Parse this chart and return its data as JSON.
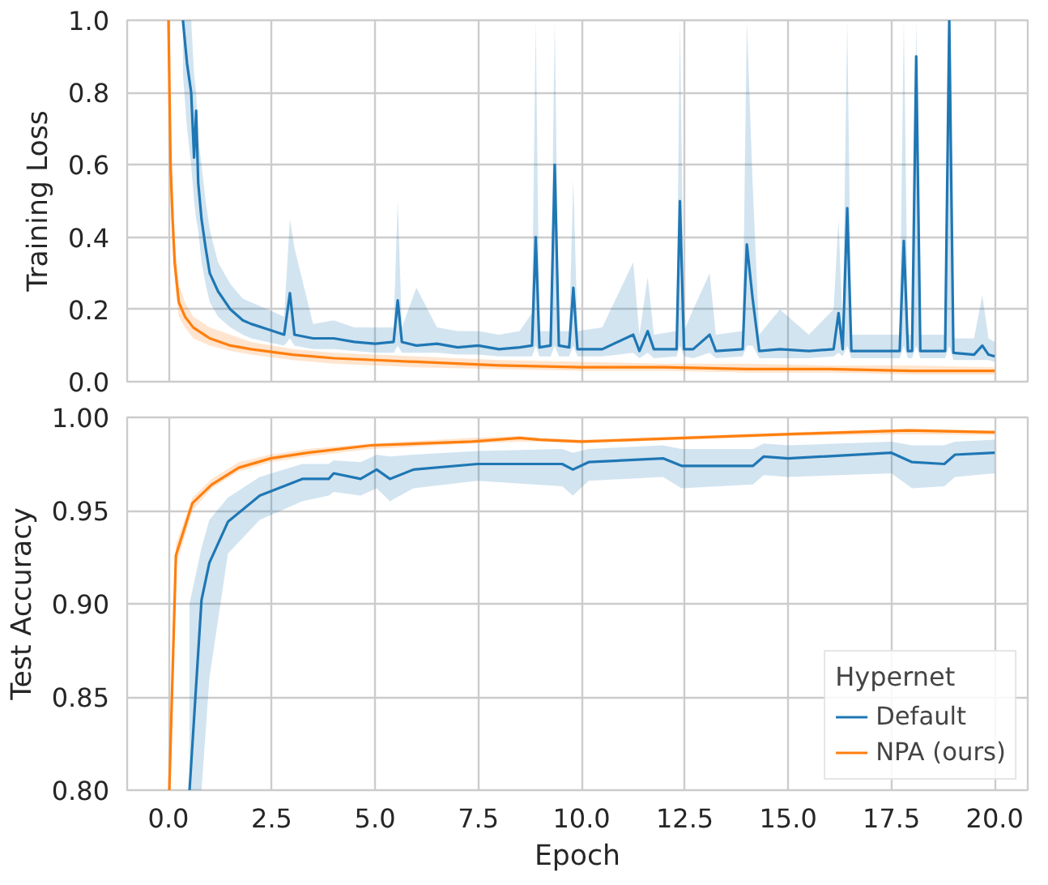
{
  "chart_data": [
    {
      "type": "line",
      "ylabel": "Training Loss",
      "xlim": [
        -1.0,
        20.8
      ],
      "ylim": [
        0,
        1.0
      ],
      "xticks": [
        0,
        2.5,
        5,
        7.5,
        10,
        12.5,
        15,
        17.5,
        20
      ],
      "yticks": [
        {
          "value": 0,
          "label": "0.0"
        },
        0.2,
        0.4,
        0.6,
        0.8,
        {
          "value": 1,
          "label": "1.0"
        }
      ],
      "grid": true,
      "tick_labels": "y",
      "series": [
        {
          "color": "#1f77b4",
          "x": [
            0.35,
            0.45,
            0.55,
            0.62,
            0.67,
            0.72,
            0.8,
            0.9,
            1.0,
            1.2,
            1.5,
            1.8,
            2.0,
            2.4,
            2.8,
            2.94,
            3.05,
            3.5,
            4.0,
            4.5,
            5.0,
            5.45,
            5.55,
            5.65,
            6.0,
            6.5,
            7.0,
            7.5,
            8.0,
            8.5,
            8.8,
            8.89,
            8.98,
            9.25,
            9.35,
            9.45,
            9.7,
            9.8,
            9.9,
            10.5,
            11.25,
            11.4,
            11.6,
            11.75,
            12.3,
            12.38,
            12.48,
            12.7,
            13.1,
            13.25,
            13.9,
            14.0,
            14.14,
            14.3,
            14.8,
            15.5,
            16.1,
            16.22,
            16.32,
            16.43,
            16.53,
            17.2,
            17.7,
            17.8,
            17.9,
            18.0,
            18.1,
            18.2,
            18.8,
            18.9,
            19.0,
            19.5,
            19.7,
            19.85,
            20.0
          ],
          "values": [
            1.0,
            0.88,
            0.8,
            0.62,
            0.75,
            0.55,
            0.45,
            0.37,
            0.3,
            0.25,
            0.2,
            0.17,
            0.16,
            0.145,
            0.13,
            0.245,
            0.13,
            0.12,
            0.12,
            0.11,
            0.105,
            0.11,
            0.225,
            0.11,
            0.1,
            0.105,
            0.095,
            0.1,
            0.09,
            0.095,
            0.1,
            0.4,
            0.095,
            0.1,
            0.6,
            0.1,
            0.095,
            0.26,
            0.09,
            0.09,
            0.13,
            0.085,
            0.14,
            0.09,
            0.09,
            0.5,
            0.09,
            0.09,
            0.13,
            0.085,
            0.09,
            0.38,
            0.23,
            0.085,
            0.09,
            0.085,
            0.09,
            0.19,
            0.09,
            0.48,
            0.085,
            0.085,
            0.085,
            0.39,
            0.085,
            0.085,
            0.9,
            0.085,
            0.085,
            1.0,
            0.08,
            0.075,
            0.1,
            0.075,
            0.07
          ],
          "lower": [
            0.85,
            0.7,
            0.6,
            0.5,
            0.45,
            0.42,
            0.33,
            0.27,
            0.22,
            0.18,
            0.15,
            0.13,
            0.12,
            0.11,
            0.1,
            0.12,
            0.1,
            0.09,
            0.09,
            0.085,
            0.08,
            0.08,
            0.1,
            0.08,
            0.08,
            0.08,
            0.075,
            0.075,
            0.07,
            0.07,
            0.07,
            0.1,
            0.07,
            0.07,
            0.1,
            0.07,
            0.07,
            0.1,
            0.07,
            0.07,
            0.08,
            0.065,
            0.08,
            0.065,
            0.07,
            0.1,
            0.07,
            0.065,
            0.08,
            0.065,
            0.07,
            0.1,
            0.1,
            0.065,
            0.065,
            0.065,
            0.07,
            0.08,
            0.07,
            0.1,
            0.065,
            0.065,
            0.065,
            0.1,
            0.065,
            0.065,
            0.1,
            0.065,
            0.065,
            0.1,
            0.06,
            0.06,
            0.06,
            0.06,
            0.055
          ],
          "upper": [
            1.0,
            1.0,
            1.0,
            0.85,
            0.8,
            0.68,
            0.6,
            0.5,
            0.42,
            0.33,
            0.27,
            0.23,
            0.22,
            0.2,
            0.18,
            0.45,
            0.37,
            0.16,
            0.17,
            0.15,
            0.15,
            0.15,
            0.5,
            0.15,
            0.26,
            0.15,
            0.14,
            0.14,
            0.13,
            0.14,
            0.19,
            1.0,
            0.14,
            0.14,
            1.0,
            0.14,
            0.14,
            0.56,
            0.14,
            0.15,
            0.33,
            0.13,
            0.29,
            0.13,
            0.14,
            1.0,
            0.14,
            0.2,
            0.3,
            0.13,
            0.14,
            1.0,
            0.55,
            0.13,
            0.2,
            0.13,
            0.2,
            0.45,
            0.14,
            1.0,
            0.13,
            0.13,
            0.13,
            1.0,
            0.13,
            0.13,
            1.0,
            0.13,
            0.13,
            1.0,
            0.12,
            0.12,
            0.24,
            0.12,
            0.11
          ]
        },
        {
          "color": "#ff7f0e",
          "x": [
            0.0,
            0.05,
            0.1,
            0.15,
            0.25,
            0.4,
            0.6,
            1.0,
            1.5,
            2.0,
            3.0,
            4.0,
            5.0,
            6.0,
            8.0,
            10.0,
            12.0,
            14.0,
            16.0,
            18.0,
            20.0
          ],
          "values": [
            1.0,
            0.6,
            0.45,
            0.33,
            0.22,
            0.18,
            0.15,
            0.12,
            0.1,
            0.09,
            0.075,
            0.065,
            0.06,
            0.055,
            0.045,
            0.04,
            0.04,
            0.035,
            0.035,
            0.03,
            0.03
          ],
          "lower": [
            0.9,
            0.5,
            0.38,
            0.28,
            0.18,
            0.15,
            0.12,
            0.1,
            0.085,
            0.075,
            0.06,
            0.05,
            0.045,
            0.04,
            0.035,
            0.03,
            0.03,
            0.025,
            0.025,
            0.02,
            0.02
          ],
          "upper": [
            1.0,
            0.75,
            0.55,
            0.4,
            0.27,
            0.22,
            0.18,
            0.15,
            0.13,
            0.11,
            0.09,
            0.08,
            0.075,
            0.07,
            0.06,
            0.055,
            0.05,
            0.05,
            0.045,
            0.045,
            0.04
          ]
        }
      ]
    },
    {
      "type": "line",
      "xlabel": "Epoch",
      "ylabel": "Test Accuracy",
      "legend_title": "Hypernet",
      "legend": "bottom right",
      "xlim": [
        -1.0,
        20.8
      ],
      "ylim": [
        0.8,
        1.0
      ],
      "xticks": [
        {
          "value": 0,
          "label": "0.0"
        },
        2.5,
        {
          "value": 5,
          "label": "5.0"
        },
        7.5,
        {
          "value": 10,
          "label": "10.0"
        },
        12.5,
        {
          "value": 15,
          "label": "15.0"
        },
        17.5,
        {
          "value": 20,
          "label": "20.0"
        }
      ],
      "yticks": [
        {
          "value": 0.8,
          "label": "0.80"
        },
        {
          "value": 0.85,
          "label": "0.85"
        },
        {
          "value": 0.9,
          "label": "0.90"
        },
        {
          "value": 0.95,
          "label": "0.95"
        },
        {
          "value": 1.0,
          "label": "1.00"
        }
      ],
      "grid": true,
      "series": [
        {
          "name": "Default",
          "color": "#1f77b4",
          "x": [
            0.51,
            0.8,
            0.99,
            1.44,
            2.21,
            3.24,
            3.88,
            4.0,
            4.65,
            5.04,
            5.36,
            5.93,
            7.48,
            9.53,
            9.79,
            10.17,
            11.97,
            12.42,
            14.15,
            14.41,
            15.0,
            17.5,
            18.0,
            18.78,
            19.04,
            20.0
          ],
          "values": [
            0.8,
            0.902,
            0.922,
            0.944,
            0.958,
            0.967,
            0.967,
            0.97,
            0.967,
            0.972,
            0.967,
            0.972,
            0.975,
            0.975,
            0.972,
            0.976,
            0.978,
            0.974,
            0.974,
            0.979,
            0.978,
            0.981,
            0.976,
            0.975,
            0.98,
            0.981
          ],
          "lower": [
            0.8,
            0.8,
            0.86,
            0.927,
            0.945,
            0.955,
            0.958,
            0.96,
            0.958,
            0.962,
            0.955,
            0.962,
            0.966,
            0.963,
            0.958,
            0.966,
            0.968,
            0.962,
            0.964,
            0.969,
            0.968,
            0.97,
            0.962,
            0.963,
            0.968,
            0.97
          ],
          "upper": [
            0.9,
            0.93,
            0.945,
            0.957,
            0.968,
            0.975,
            0.975,
            0.977,
            0.976,
            0.98,
            0.979,
            0.98,
            0.982,
            0.983,
            0.981,
            0.983,
            0.985,
            0.983,
            0.983,
            0.986,
            0.985,
            0.987,
            0.985,
            0.985,
            0.987,
            0.988
          ]
        },
        {
          "name": "NPA (ours)",
          "color": "#ff7f0e",
          "x": [
            0.02,
            0.18,
            0.58,
            1.05,
            1.7,
            2.47,
            3.37,
            4.9,
            7.35,
            8.5,
            9.0,
            10.0,
            12.5,
            15.06,
            17.9,
            20.0
          ],
          "values": [
            0.8,
            0.926,
            0.954,
            0.964,
            0.973,
            0.978,
            0.981,
            0.985,
            0.987,
            0.989,
            0.988,
            0.987,
            0.989,
            0.991,
            0.993,
            0.992
          ],
          "lower": [
            0.8,
            0.92,
            0.95,
            0.962,
            0.971,
            0.976,
            0.979,
            0.983,
            0.986,
            0.987,
            0.987,
            0.986,
            0.988,
            0.99,
            0.991,
            0.9905
          ],
          "upper": [
            0.81,
            0.932,
            0.957,
            0.967,
            0.976,
            0.98,
            0.983,
            0.986,
            0.989,
            0.99,
            0.989,
            0.988,
            0.99,
            0.992,
            0.994,
            0.993
          ]
        }
      ]
    }
  ]
}
